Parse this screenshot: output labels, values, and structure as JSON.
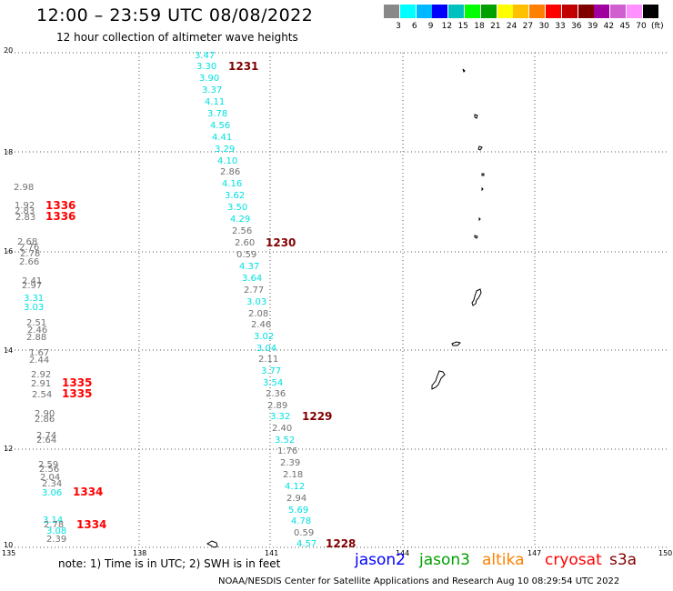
{
  "title": "12:00 – 23:59 UTC 08/08/2022",
  "subtitle": "12 hour collection of altimeter wave heights",
  "legend": {
    "colors": [
      "#888888",
      "#00ffff",
      "#00b8ff",
      "#0000ff",
      "#00c0c0",
      "#00ff00",
      "#00a000",
      "#ffff00",
      "#ffc000",
      "#ff8000",
      "#ff0000",
      "#c00000",
      "#800000",
      "#a000a0",
      "#d060d0",
      "#ff90ff",
      "#000000"
    ],
    "labels": [
      "3",
      "6",
      "9",
      "12",
      "15",
      "18",
      "21",
      "24",
      "27",
      "30",
      "33",
      "36",
      "39",
      "42",
      "45",
      "70",
      "(ft)"
    ]
  },
  "y_axis_labels": [
    "20",
    "18",
    "16",
    "14",
    "12",
    "10"
  ],
  "x_axis_labels": [
    "135",
    "138",
    "141",
    "144",
    "147",
    "150"
  ],
  "track_values": [
    {
      "v": "3.47",
      "c": "#00e0e0"
    },
    {
      "v": "3.30",
      "c": "#00e0e0"
    },
    {
      "v": "3.90",
      "c": "#00e0e0"
    },
    {
      "v": "3.37",
      "c": "#00e0e0"
    },
    {
      "v": "4.11",
      "c": "#00e0e0"
    },
    {
      "v": "3.78",
      "c": "#00e0e0"
    },
    {
      "v": "4.56",
      "c": "#00e0e0"
    },
    {
      "v": "4.41",
      "c": "#00e0e0"
    },
    {
      "v": "3.29",
      "c": "#00e0e0"
    },
    {
      "v": "4.10",
      "c": "#00e0e0"
    },
    {
      "v": "2.86",
      "c": "#707070"
    },
    {
      "v": "4.16",
      "c": "#00e0e0"
    },
    {
      "v": "3.62",
      "c": "#00e0e0"
    },
    {
      "v": "3.50",
      "c": "#00e0e0"
    },
    {
      "v": "4.29",
      "c": "#00e0e0"
    },
    {
      "v": "2.56",
      "c": "#707070"
    },
    {
      "v": "2.60",
      "c": "#707070"
    },
    {
      "v": "0.59",
      "c": "#707070"
    },
    {
      "v": "4.37",
      "c": "#00e0e0"
    },
    {
      "v": "3.64",
      "c": "#00e0e0"
    },
    {
      "v": "2.77",
      "c": "#707070"
    },
    {
      "v": "3.03",
      "c": "#00e0e0"
    },
    {
      "v": "2.08",
      "c": "#707070"
    },
    {
      "v": "2.46",
      "c": "#707070"
    },
    {
      "v": "3.02",
      "c": "#00e0e0"
    },
    {
      "v": "3.04",
      "c": "#00e0e0"
    },
    {
      "v": "2.11",
      "c": "#707070"
    },
    {
      "v": "3.77",
      "c": "#00e0e0"
    },
    {
      "v": "3.54",
      "c": "#00e0e0"
    },
    {
      "v": "2.36",
      "c": "#707070"
    },
    {
      "v": "2.89",
      "c": "#707070"
    },
    {
      "v": "3.32",
      "c": "#00e0e0"
    },
    {
      "v": "2.40",
      "c": "#707070"
    },
    {
      "v": "3.52",
      "c": "#00e0e0"
    },
    {
      "v": "1.76",
      "c": "#707070"
    },
    {
      "v": "2.39",
      "c": "#707070"
    },
    {
      "v": "2.18",
      "c": "#707070"
    },
    {
      "v": "4.12",
      "c": "#00e0e0"
    },
    {
      "v": "2.94",
      "c": "#707070"
    },
    {
      "v": "5.69",
      "c": "#00e0e0"
    },
    {
      "v": "4.78",
      "c": "#00e0e0"
    },
    {
      "v": "0.59",
      "c": "#707070"
    },
    {
      "v": "4.57",
      "c": "#00e0e0"
    }
  ],
  "left_values": [
    {
      "v": "2.98",
      "c": "#707070"
    },
    {
      "v": "1.92",
      "c": "#707070"
    },
    {
      "v": "2.83",
      "c": "#707070"
    },
    {
      "v": "2.83",
      "c": "#707070"
    },
    {
      "v": "2.68",
      "c": "#707070"
    },
    {
      "v": "2.76",
      "c": "#707070"
    },
    {
      "v": "2.78",
      "c": "#707070"
    },
    {
      "v": "2.66",
      "c": "#707070"
    },
    {
      "v": "2.41",
      "c": "#707070"
    },
    {
      "v": "2.97",
      "c": "#707070"
    },
    {
      "v": "3.31",
      "c": "#00e0e0"
    },
    {
      "v": "3.03",
      "c": "#00e0e0"
    },
    {
      "v": "2.51",
      "c": "#707070"
    },
    {
      "v": "2.46",
      "c": "#707070"
    },
    {
      "v": "2.88",
      "c": "#707070"
    },
    {
      "v": "1.67",
      "c": "#707070"
    },
    {
      "v": "2.44",
      "c": "#707070"
    },
    {
      "v": "2.92",
      "c": "#707070"
    },
    {
      "v": "2.91",
      "c": "#707070"
    },
    {
      "v": "2.54",
      "c": "#707070"
    },
    {
      "v": "2.90",
      "c": "#707070"
    },
    {
      "v": "2.86",
      "c": "#707070"
    },
    {
      "v": "2.74",
      "c": "#707070"
    },
    {
      "v": "2.64",
      "c": "#707070"
    },
    {
      "v": "2.59",
      "c": "#707070"
    },
    {
      "v": "2.56",
      "c": "#707070"
    },
    {
      "v": "2.04",
      "c": "#707070"
    },
    {
      "v": "2.34",
      "c": "#707070"
    },
    {
      "v": "3.06",
      "c": "#00e0e0"
    },
    {
      "v": "3.14",
      "c": "#00e0e0"
    },
    {
      "v": "2.78",
      "c": "#707070"
    },
    {
      "v": "3.08",
      "c": "#00e0e0"
    },
    {
      "v": "2.39",
      "c": "#707070"
    }
  ],
  "time_labels": [
    {
      "t": "1231",
      "c": "#800000"
    },
    {
      "t": "1336",
      "c": "#ff0000"
    },
    {
      "t": "1336",
      "c": "#ff0000"
    },
    {
      "t": "1230",
      "c": "#800000"
    },
    {
      "t": "1335",
      "c": "#ff0000"
    },
    {
      "t": "1335",
      "c": "#ff0000"
    },
    {
      "t": "1229",
      "c": "#800000"
    },
    {
      "t": "1334",
      "c": "#ff0000"
    },
    {
      "t": "1334",
      "c": "#ff0000"
    },
    {
      "t": "1228",
      "c": "#800000"
    }
  ],
  "note": "note: 1) Time is in UTC; 2) SWH is in feet",
  "satellites": [
    {
      "name": "jason2",
      "color": "#0000ff"
    },
    {
      "name": "jason3",
      "color": "#00a000"
    },
    {
      "name": "altika",
      "color": "#ff8000"
    },
    {
      "name": "cryosat",
      "color": "#ff0000"
    },
    {
      "name": "s3a",
      "color": "#800000"
    }
  ],
  "footer": "NOAA/NESDIS Center for Satellite Applications and Research     Aug 10 08:29:54 UTC 2022"
}
